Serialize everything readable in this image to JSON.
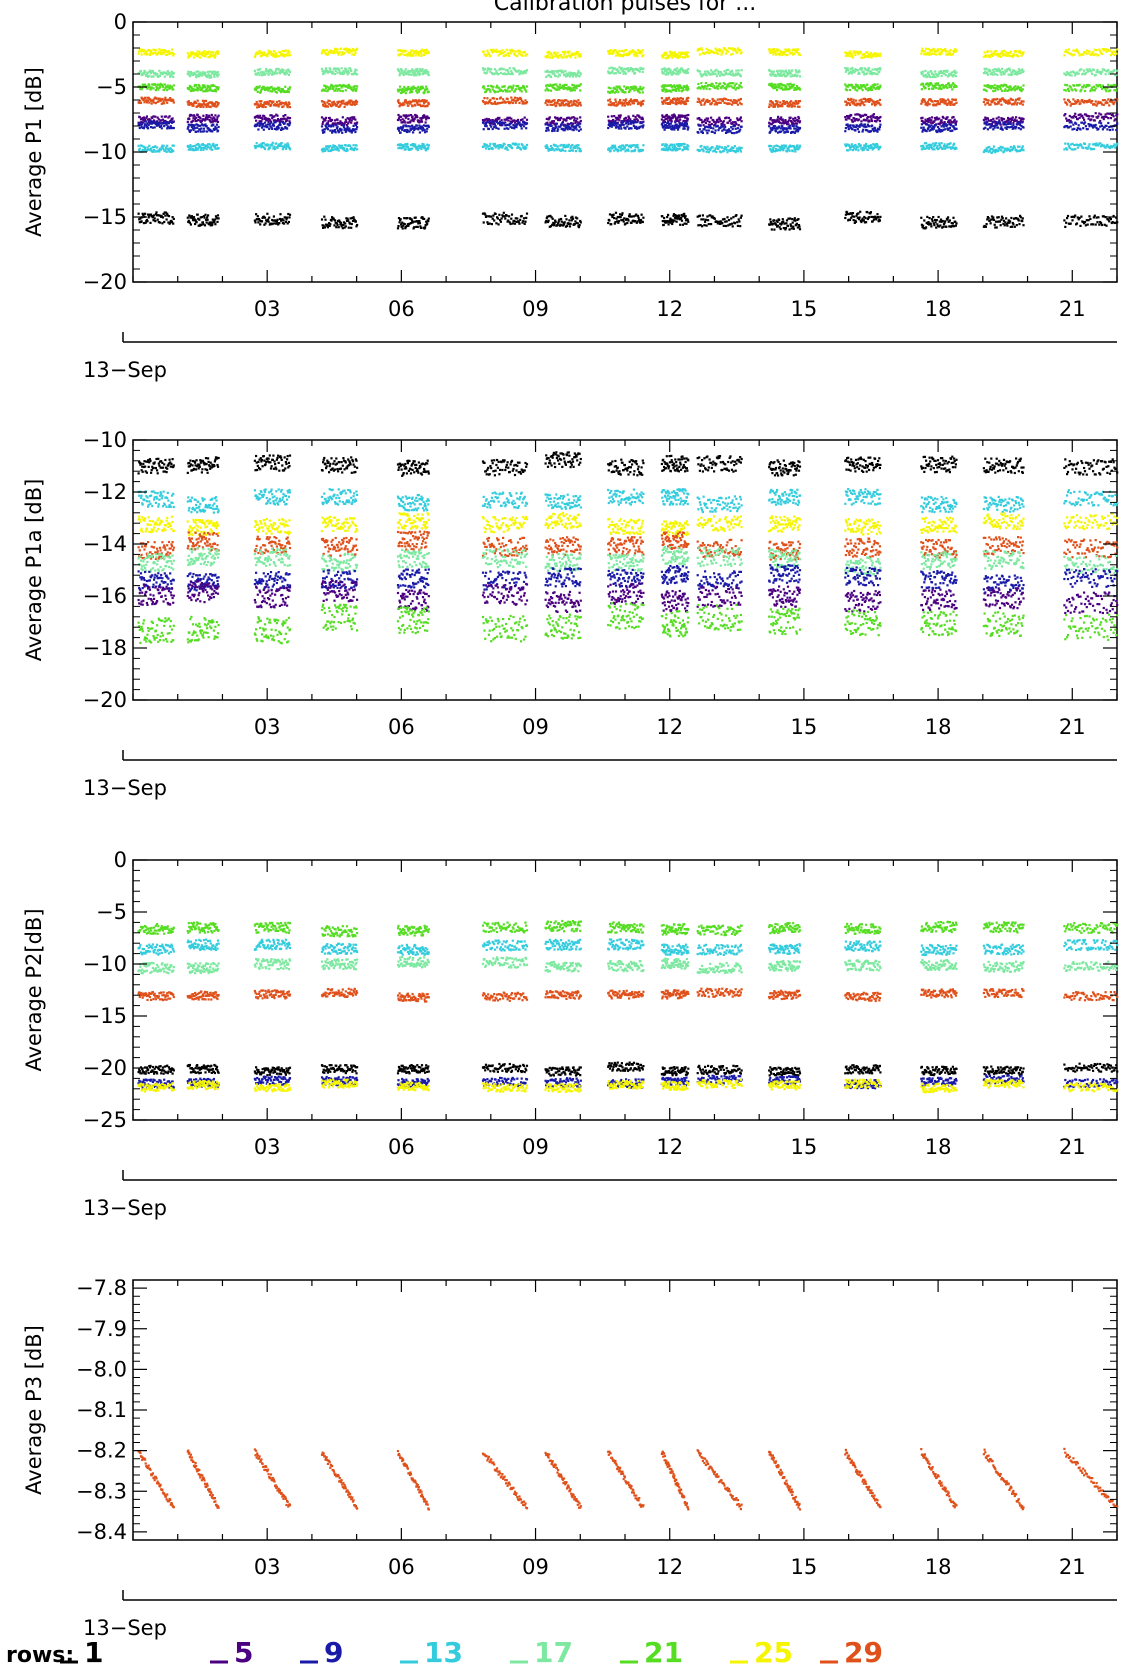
{
  "title": "Calibration pulses for ...",
  "colors": {
    "1": "#000000",
    "5": "#4b0082",
    "9": "#1a1aa8",
    "13": "#33ccdd",
    "17": "#7ce8a0",
    "21": "#55dd22",
    "25": "#f5f500",
    "29": "#e0501a"
  },
  "legend": {
    "label": "rows:",
    "items": [
      {
        "row": "1",
        "color": "#000000"
      },
      {
        "row": "5",
        "color": "#4b0082"
      },
      {
        "row": "9",
        "color": "#1a1aa8"
      },
      {
        "row": "13",
        "color": "#33ccdd"
      },
      {
        "row": "17",
        "color": "#7ce8a0"
      },
      {
        "row": "21",
        "color": "#55dd22"
      },
      {
        "row": "25",
        "color": "#f5f500"
      },
      {
        "row": "29",
        "color": "#e0501a"
      }
    ]
  },
  "chart_data": [
    {
      "type": "scatter",
      "ylabel": "Average P1 [dB]",
      "ylim": [
        -20,
        0
      ],
      "yticks": [
        "0",
        "−5",
        "−10",
        "−15",
        "−20"
      ],
      "ytick_values": [
        0,
        -5,
        -10,
        -15,
        -20
      ],
      "xlim": [
        0,
        22
      ],
      "xticks": [
        "03",
        "06",
        "09",
        "12",
        "15",
        "18",
        "21"
      ],
      "xtick_values": [
        3,
        6,
        9,
        12,
        15,
        18,
        21
      ],
      "date_label": "13−Sep",
      "series": [
        {
          "name": "25",
          "y": -2.3,
          "spread": 0.5
        },
        {
          "name": "17",
          "y": -3.8,
          "spread": 0.5
        },
        {
          "name": "21",
          "y": -5.0,
          "spread": 0.5
        },
        {
          "name": "29",
          "y": -6.1,
          "spread": 0.5
        },
        {
          "name": "5",
          "y": -7.4,
          "spread": 0.6
        },
        {
          "name": "9",
          "y": -8.0,
          "spread": 0.6
        },
        {
          "name": "13",
          "y": -9.6,
          "spread": 0.5
        },
        {
          "name": "1",
          "y": -15.2,
          "spread": 0.9
        }
      ]
    },
    {
      "type": "scatter",
      "ylabel": "Average P1a [dB]",
      "ylim": [
        -20,
        -10
      ],
      "yticks": [
        "−10",
        "−12",
        "−14",
        "−16",
        "−18",
        "−20"
      ],
      "ytick_values": [
        -10,
        -12,
        -14,
        -16,
        -18,
        -20
      ],
      "xlim": [
        0,
        22
      ],
      "xticks": [
        "03",
        "06",
        "09",
        "12",
        "15",
        "18",
        "21"
      ],
      "xtick_values": [
        3,
        6,
        9,
        12,
        15,
        18,
        21
      ],
      "date_label": "13−Sep",
      "series": [
        {
          "name": "1",
          "y": -10.9,
          "spread": 0.6
        },
        {
          "name": "13",
          "y": -12.3,
          "spread": 0.6
        },
        {
          "name": "25",
          "y": -13.2,
          "spread": 0.6
        },
        {
          "name": "29",
          "y": -14.0,
          "spread": 0.7
        },
        {
          "name": "17",
          "y": -14.6,
          "spread": 0.7
        },
        {
          "name": "9",
          "y": -15.3,
          "spread": 0.7
        },
        {
          "name": "5",
          "y": -16.0,
          "spread": 0.8
        },
        {
          "name": "21",
          "y": -17.0,
          "spread": 1.0
        }
      ]
    },
    {
      "type": "scatter",
      "ylabel": "Average P2[dB]",
      "ylim": [
        -25,
        0
      ],
      "yticks": [
        "0",
        "−5",
        "−10",
        "−15",
        "−20",
        "−25"
      ],
      "ytick_values": [
        0,
        -5,
        -10,
        -15,
        -20,
        -25
      ],
      "xlim": [
        0,
        22
      ],
      "xticks": [
        "03",
        "06",
        "09",
        "12",
        "15",
        "18",
        "21"
      ],
      "xtick_values": [
        3,
        6,
        9,
        12,
        15,
        18,
        21
      ],
      "date_label": "13−Sep",
      "series": [
        {
          "name": "21",
          "y": -6.5,
          "spread": 1.0
        },
        {
          "name": "13",
          "y": -8.3,
          "spread": 1.0
        },
        {
          "name": "17",
          "y": -10.0,
          "spread": 1.0
        },
        {
          "name": "29",
          "y": -12.9,
          "spread": 0.8
        },
        {
          "name": "1",
          "y": -20.0,
          "spread": 0.8
        },
        {
          "name": "9",
          "y": -21.2,
          "spread": 0.8
        },
        {
          "name": "25",
          "y": -21.6,
          "spread": 0.8
        }
      ]
    },
    {
      "type": "scatter",
      "ylabel": "Average P3 [dB]",
      "ylim": [
        -8.42,
        -7.78
      ],
      "yticks": [
        "−7.8",
        "−7.9",
        "−8.0",
        "−8.1",
        "−8.2",
        "−8.3",
        "−8.4"
      ],
      "ytick_values": [
        -7.8,
        -7.9,
        -8.0,
        -8.1,
        -8.2,
        -8.3,
        -8.4
      ],
      "xlim": [
        0,
        22
      ],
      "xticks": [
        "03",
        "06",
        "09",
        "12",
        "15",
        "18",
        "21"
      ],
      "xtick_values": [
        3,
        6,
        9,
        12,
        15,
        18,
        21
      ],
      "date_label": "13−Sep",
      "series": [
        {
          "name": "29",
          "y": -8.2,
          "spread": 0.02
        }
      ]
    }
  ]
}
